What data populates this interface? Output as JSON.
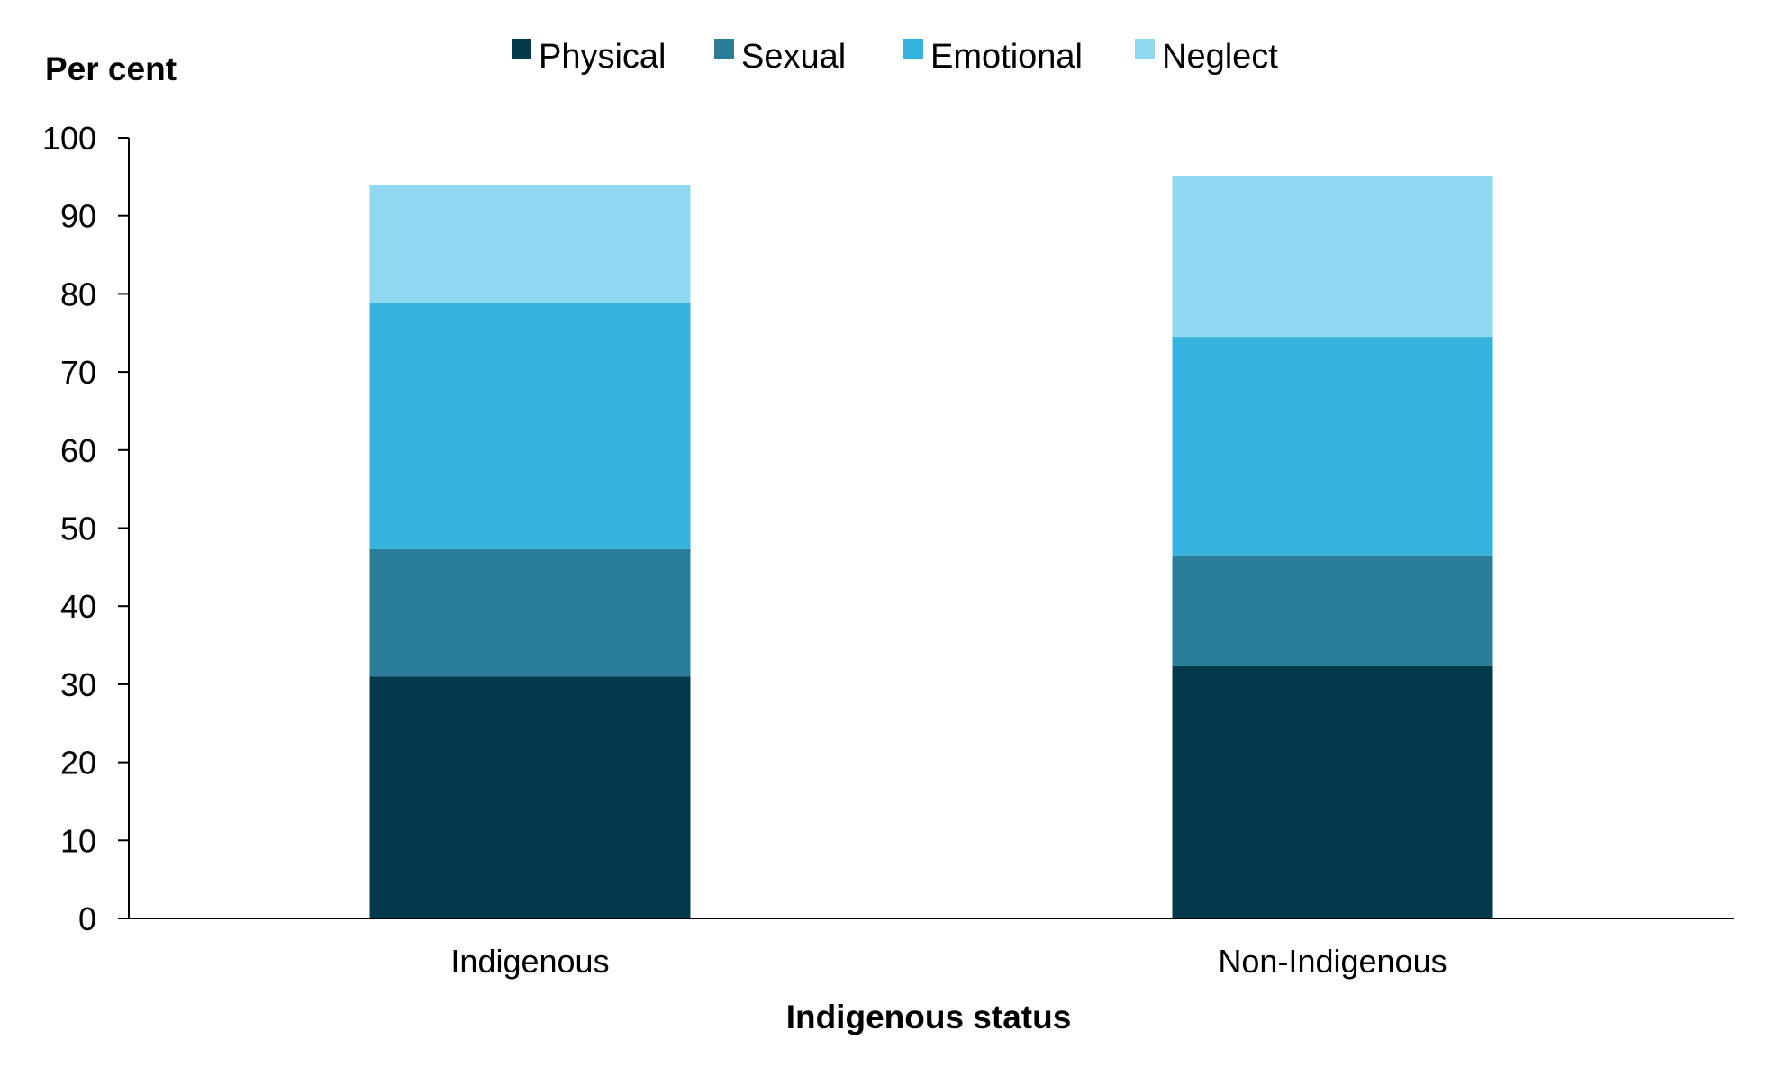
{
  "chart_data": {
    "type": "bar",
    "stacked": true,
    "categories": [
      "Indigenous",
      "Non-Indigenous"
    ],
    "series": [
      {
        "name": "Physical",
        "color": "#023a4b",
        "values": [
          31.0,
          32.3
        ]
      },
      {
        "name": "Sexual",
        "color": "#2a7d97",
        "values": [
          16.3,
          14.2
        ]
      },
      {
        "name": "Emotional",
        "color": "#36b3dc",
        "values": [
          31.6,
          28.0
        ]
      },
      {
        "name": "Neglect",
        "color": "#8fd8f1",
        "values": [
          15.0,
          20.6
        ]
      }
    ],
    "xlabel": "Indigenous status",
    "ylabel": "Per cent",
    "ylim": [
      0,
      100
    ],
    "yticks": [
      "0",
      "10",
      "20",
      "30",
      "40",
      "50",
      "60",
      "70",
      "80",
      "90",
      "100"
    ],
    "legend_position": "top-center",
    "grid": false
  }
}
